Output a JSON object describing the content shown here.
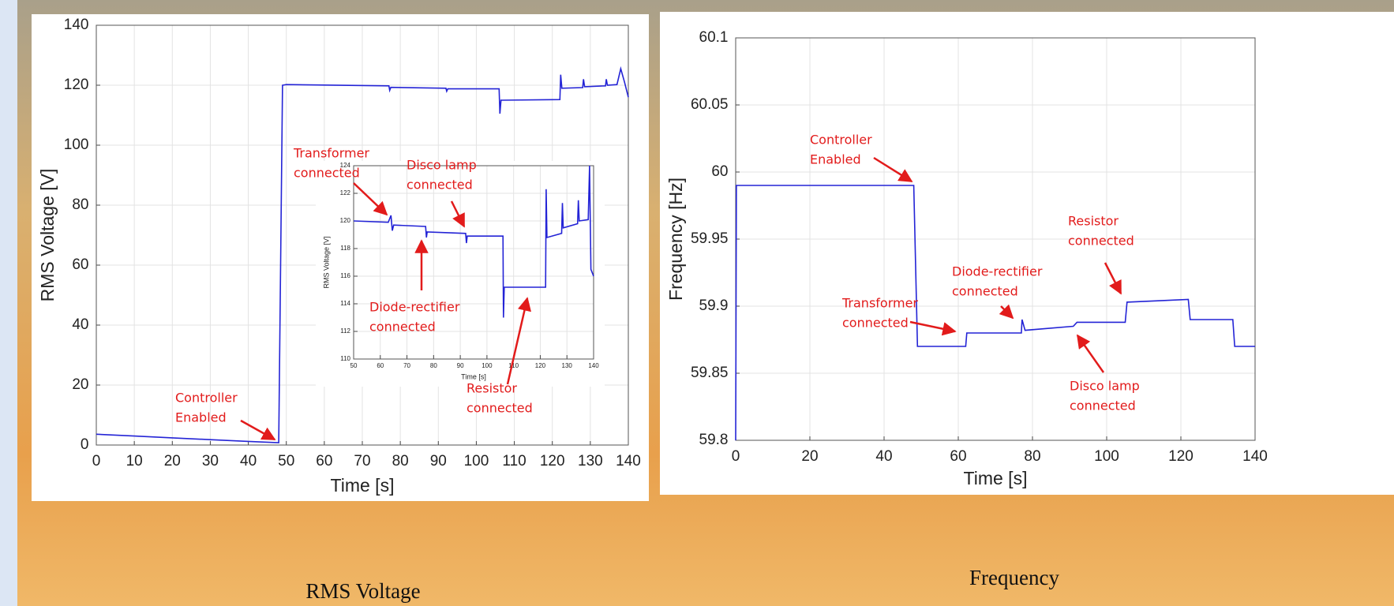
{
  "chart_data": [
    {
      "type": "line",
      "caption": "RMS Voltage",
      "xlabel": "Time [s]",
      "ylabel": "RMS Voltage [V]",
      "xlim": [
        0,
        140
      ],
      "ylim": [
        0,
        140
      ],
      "xticks": [
        0,
        10,
        20,
        30,
        40,
        50,
        60,
        70,
        80,
        90,
        100,
        110,
        120,
        130,
        140
      ],
      "yticks": [
        0,
        20,
        40,
        60,
        80,
        100,
        120,
        140
      ],
      "grid": true,
      "color": "#2424d6",
      "x": [
        0,
        10,
        20,
        30,
        40,
        48,
        49,
        50,
        77,
        77.2,
        77.5,
        92,
        92.2,
        92.5,
        106,
        106.2,
        106.5,
        122,
        122.2,
        122.5,
        128,
        128.2,
        128.5,
        134,
        134.2,
        134.5,
        137,
        138,
        139,
        140
      ],
      "values": [
        3.6,
        3,
        2.4,
        1.8,
        1.2,
        0.8,
        120,
        120.2,
        119.8,
        118.3,
        119.3,
        119,
        118,
        118.8,
        118.8,
        110.5,
        115,
        115.2,
        123.5,
        119,
        119.2,
        122,
        119.5,
        119.8,
        122,
        120,
        120.2,
        125.5,
        121,
        116
      ],
      "annotations": [
        [
          "Controller",
          "Enabled"
        ],
        [
          "Transformer",
          "connected"
        ],
        [
          "Disco lamp",
          "connected"
        ],
        [
          "Diode-rectifier",
          "connected"
        ],
        [
          "Resistor",
          "connected"
        ]
      ],
      "inset": {
        "type": "line",
        "xlabel": "Time [s]",
        "ylabel": "RMS Voltage [V]",
        "xlim": [
          50,
          140
        ],
        "ylim": [
          110,
          124
        ],
        "xticks": [
          50,
          60,
          70,
          80,
          90,
          100,
          110,
          120,
          130,
          140
        ],
        "yticks": [
          110,
          112,
          114,
          116,
          118,
          120,
          122,
          124
        ],
        "grid": true,
        "color": "#2424d6",
        "x": [
          50,
          63,
          64,
          64.5,
          65,
          77,
          77.3,
          77.6,
          92,
          92.3,
          92.6,
          106,
          106.2,
          106.5,
          122,
          122.2,
          122.5,
          128,
          128.3,
          128.6,
          134,
          134.3,
          134.6,
          138,
          138.5,
          139,
          140
        ],
        "values": [
          120,
          119.9,
          120.4,
          119.3,
          119.7,
          119.6,
          118.8,
          119.2,
          119.1,
          118.4,
          118.9,
          118.9,
          113,
          115.2,
          115.2,
          122.3,
          118.8,
          119.1,
          121.3,
          119.5,
          119.8,
          121.5,
          120,
          120.1,
          124,
          116.5,
          116
        ]
      }
    },
    {
      "type": "line",
      "caption": "Frequency",
      "xlabel": "Time [s]",
      "ylabel": "Frequency [Hz]",
      "xlim": [
        0,
        140
      ],
      "ylim": [
        59.8,
        60.1
      ],
      "xticks": [
        0,
        20,
        40,
        60,
        80,
        100,
        120,
        140
      ],
      "yticks": [
        59.8,
        59.85,
        59.9,
        59.95,
        60,
        60.05,
        60.1
      ],
      "grid": true,
      "color": "#2424d6",
      "x": [
        0,
        0.2,
        48,
        49,
        62,
        62.3,
        77,
        77.2,
        78,
        91,
        92,
        105,
        105.5,
        122,
        122.5,
        134,
        134.5,
        140
      ],
      "values": [
        59.8,
        59.99,
        59.99,
        59.87,
        59.87,
        59.88,
        59.88,
        59.89,
        59.882,
        59.885,
        59.888,
        59.888,
        59.903,
        59.905,
        59.89,
        59.89,
        59.87,
        59.87
      ],
      "annotations": [
        [
          "Controller",
          "Enabled"
        ],
        [
          "Transformer",
          "connected"
        ],
        [
          "Diode-rectifier",
          "connected"
        ],
        [
          "Resistor",
          "connected"
        ],
        [
          "Disco lamp",
          "connected"
        ]
      ]
    }
  ]
}
